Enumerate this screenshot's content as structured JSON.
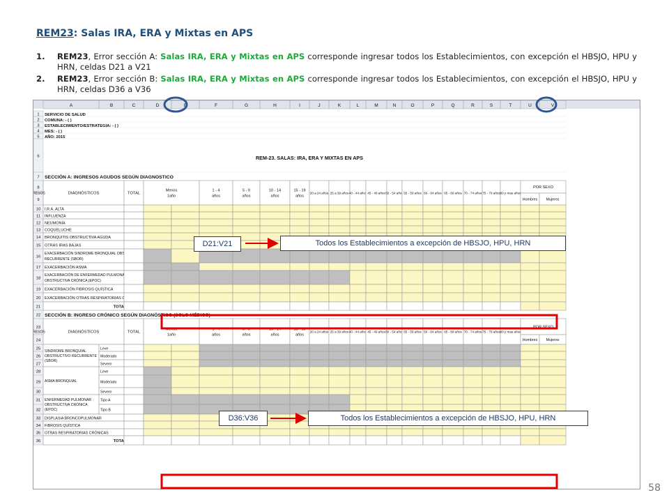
{
  "heading": {
    "code": "REM23",
    "rest": ": Salas IRA, ERA y Mixtas en APS"
  },
  "items": [
    {
      "num": "1.",
      "code": "REM23",
      "p1": ", Error sección A: ",
      "green": "Salas IRA, ERA y Mixtas en APS",
      "p2": " corresponde ingresar todos los Establecimientos, con excepción el HBSJO, HPU y HRN, celdas D21 a V21"
    },
    {
      "num": "2.",
      "code": "REM23",
      "p1": ", Error sección B: ",
      "green": "Salas IRA, ERA y Mixtas en APS",
      "p2": " corresponde ingresar todos los Establecimientos, con excepción el HBSJO, HPU y HRN, celdas D36 a V36"
    }
  ],
  "sheet": {
    "columns": [
      "A",
      "B",
      "C",
      "D",
      "E",
      "F",
      "G",
      "H",
      "I",
      "J",
      "K",
      "L",
      "M",
      "N",
      "O",
      "P",
      "Q",
      "R",
      "S",
      "T",
      "U",
      "V"
    ],
    "info_rows": [
      "SERVICIO DE SALUD",
      "COMUNA: - ( )",
      "ESTABLECIMIENTO/ESTRATEGIA: - ( )",
      "MES: - ( )",
      "AÑO: 2015"
    ],
    "title": "REM-23.  SALAS: IRA, ERA Y MIXTAS EN APS",
    "section_a": "SECCIÓN A: INGRESOS AGUDOS SEGÚN DIAGNOSTICO",
    "section_b": "SECCIÓN B: INGRESO CRÓNICO SEGÚN DIAGNÓSTICO (SOLO MÉDICO)",
    "hdr_diag": "DIAGNÓSTICOS",
    "hdr_total": "TOTAL",
    "hdr_menos": [
      "Menos",
      "1año"
    ],
    "age_groups": [
      [
        "1 - 4",
        "años"
      ],
      [
        "5 - 9",
        "años"
      ],
      [
        "10 - 14",
        "años"
      ],
      [
        "15 - 19",
        "años"
      ],
      [
        "20 a 24 años"
      ],
      [
        "25 a 39 años"
      ],
      [
        "40 - 44 años"
      ],
      [
        "45 - 49 años"
      ],
      [
        "50 - 54 años"
      ],
      [
        "55 - 59 años"
      ],
      [
        "60 - 64 años"
      ],
      [
        "65 - 69 años"
      ],
      [
        "70 - 74 años"
      ],
      [
        "75 - 79 años"
      ],
      [
        "80 y mas años"
      ]
    ],
    "hdr_sexo": "POR SEXO",
    "hdr_hombres": "Hombres",
    "hdr_mujeres": "Mujeres",
    "hdr_reingresos": "REINGRESOS",
    "rows_a": [
      {
        "n": "10",
        "label": [
          "I.R.A. ALTA"
        ]
      },
      {
        "n": "11",
        "label": [
          "INFLUENZA"
        ]
      },
      {
        "n": "12",
        "label": [
          "NEUMONÍA"
        ]
      },
      {
        "n": "13",
        "label": [
          "COQUELUCHE"
        ]
      },
      {
        "n": "14",
        "label": [
          "BRONQUITIS OBSTRUCTIVA AGUDA"
        ]
      },
      {
        "n": "15",
        "label": [
          "OTRAS IRAS BAJAS"
        ]
      },
      {
        "n": "16",
        "label": [
          "EXACERBACIÓN SINDROME BRONQUIAL OBSTRUCTIVO",
          "RECURRENTE (SBOR)"
        ]
      },
      {
        "n": "17",
        "label": [
          "EXACERBACIÓN ASMA"
        ]
      },
      {
        "n": "18",
        "label": [
          "EXACERBACIÓN DE ENFERMEDAD PULMONAR",
          "OBSTRUCTIVA CRÓNICA (EPOC)"
        ]
      },
      {
        "n": "19",
        "label": [
          "EXACERBACIÓN FIBROSIS QUÍSTICA"
        ]
      },
      {
        "n": "20",
        "label": [
          "EXACERBACIÓN OTRAS RESPIRATORIAS CRÓNICAS"
        ]
      },
      {
        "n": "21",
        "label": [
          "TOTAL"
        ]
      }
    ],
    "b_groups": [
      {
        "label": [
          "SINDROME BRONQUIAL",
          "OBSTRUCTIVO RECURRENTE",
          "(SBOR)"
        ],
        "rows": [
          [
            "25",
            "Leve"
          ],
          [
            "26",
            "Moderado"
          ],
          [
            "27",
            "Severo"
          ]
        ]
      },
      {
        "label": [
          "ASMA BRONQUIAL"
        ],
        "rows": [
          [
            "28",
            "Leve"
          ],
          [
            "29",
            "Moderado"
          ],
          [
            "30",
            "Severo"
          ]
        ]
      },
      {
        "label": [
          "ENFERMEDAD PULMONAR",
          "OBSTRUCTIVA CRÓNICA",
          "(EPOC)"
        ],
        "rows": [
          [
            "31",
            "Tipo A"
          ],
          [
            "32",
            "Tipo B"
          ]
        ]
      }
    ],
    "b_single": [
      {
        "n": "33",
        "label": "DISPLASIA BRONCOPULMONAR"
      },
      {
        "n": "34",
        "label": "FIBROSIS QUÍSTICA"
      },
      {
        "n": "35",
        "label": "OTRAS RESPIRATORIAS CRÓNICAS"
      },
      {
        "n": "36",
        "label": "TOTAL"
      }
    ]
  },
  "callouts": {
    "a_range": "D21:V21",
    "a_text": "Todos los Establecimientos a excepción de HBSJO, HPU, HRN",
    "b_range": "D36:V36",
    "b_text": "Todos los Establecimientos a excepción de HBSJO, HPU, HRN"
  },
  "colors": {
    "highlight": "#e00000",
    "cell_yellow": "#fdf7c3",
    "cell_gray": "#bfbfbf",
    "circle": "#2f5597",
    "heading": "#1f4e79",
    "green": "#1eaa3a"
  },
  "page_number": "58"
}
